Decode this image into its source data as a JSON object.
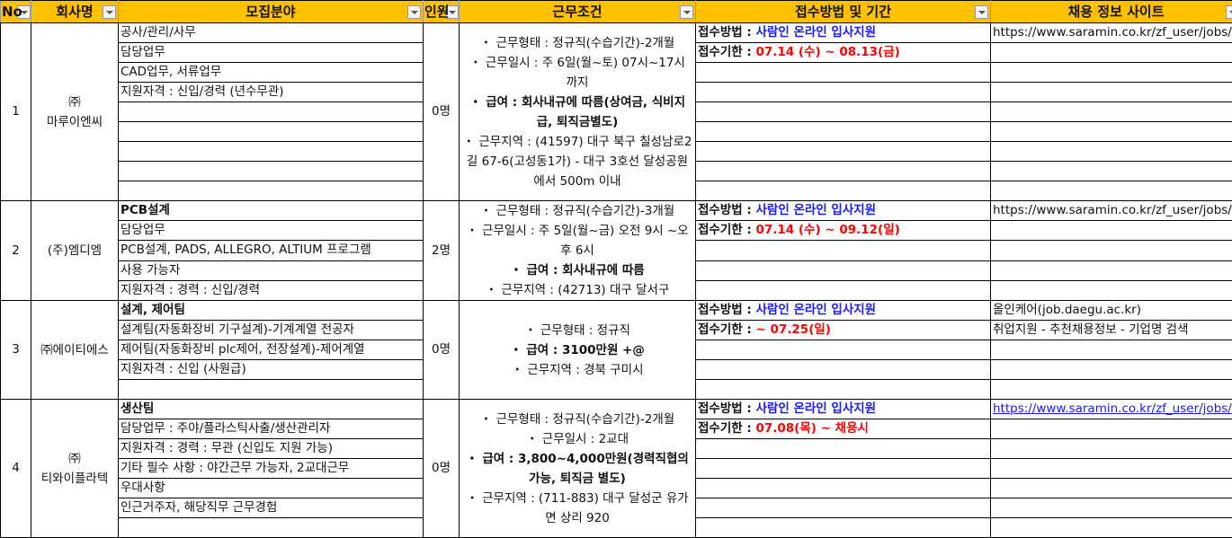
{
  "header": [
    "No",
    "회사명",
    "모집분야",
    "인원",
    "근무조건",
    "접수방법 및 기간",
    "채용 정보 사이트"
  ],
  "colors": {
    "header_bg": "#FFC000",
    "method": "#1a1aff",
    "deadline": "#ff0000"
  },
  "rows": [
    {
      "no": "1",
      "company": "㈜\n마루이엔씨",
      "count": "0명",
      "fields": [
        {
          "t": "공사/관리/사무"
        },
        {
          "t": "담당업무"
        },
        {
          "t": "CAD업무, 서류업무"
        },
        {
          "t": "지원자격 : 신입/경력 (년수무관)"
        },
        {
          "t": ""
        },
        {
          "t": ""
        },
        {
          "t": ""
        },
        {
          "t": ""
        },
        {
          "t": ""
        }
      ],
      "conditions": [
        {
          "t": "・ 근무형태 : 정규직(수습기간)-2개월",
          "b": false
        },
        {
          "t": "・ 근무일시 : 주 6일(월~토) 07시~17시 까지",
          "b": false
        },
        {
          "t": "・ 급여 : 회사내규에 따름(상여금, 식비지급, 퇴직금별도)",
          "b": true
        },
        {
          "t": "・ 근무지역 : (41597) 대구 북구 칠성남로2길 67-6(고성동1가) - 대구 3호선 달성공원 에서 500m 이내",
          "b": false
        }
      ],
      "method_label": "접수방법 : ",
      "method": "사람인 온라인 입사지원",
      "deadline_label": "접수기한 : ",
      "deadline": " 07.14 (수) ~ 08.13(금)",
      "sites": [
        {
          "t": "https://www.saramin.co.kr/zf_user/jobs/",
          "link": false
        },
        {
          "t": ""
        }
      ]
    },
    {
      "no": "2",
      "company": "(주)엠디엠",
      "count": "2명",
      "fields": [
        {
          "t": "PCB설계",
          "b": true
        },
        {
          "t": "담당업무"
        },
        {
          "t": "PCB설계, PADS, ALLEGRO, ALTIUM 프로그램"
        },
        {
          "t": "사용 가능자"
        },
        {
          "t": "지원자격 : 경력 : 신입/경력"
        }
      ],
      "conditions": [
        {
          "t": "・ 근무형태 : 정규직(수습기간)-3개월",
          "b": false
        },
        {
          "t": "・ 근무일시 : 주 5일(월~금) 오전 9시 ~오후 6시",
          "b": false
        },
        {
          "t": "・ 급여 : 회사내규에 따름",
          "b": true
        },
        {
          "t": "・ 근무지역 : (42713) 대구 달서구",
          "b": false
        }
      ],
      "method_label": "접수방법 : ",
      "method": "사람인 온라인 입사지원",
      "deadline_label": "접수기한 : ",
      "deadline": " 07.14 (수) ~ 09.12(일)",
      "sites": [
        {
          "t": "https://www.saramin.co.kr/zf_user/jobs/",
          "link": false
        },
        {
          "t": ""
        }
      ]
    },
    {
      "no": "3",
      "company": "㈜에이티에스",
      "count": "0명",
      "fields": [
        {
          "t": "설계, 제어팀",
          "b": true
        },
        {
          "t": "설계팀(자동화장비 기구설계)-기계계열 전공자"
        },
        {
          "t": "제어팀(자동화장비 plc제어, 전장설계)-제어계열"
        },
        {
          "t": "지원자격 : 신입 (사원급)"
        },
        {
          "t": ""
        }
      ],
      "conditions": [
        {
          "t": "・ 근무형태 : 정규직",
          "b": false
        },
        {
          "t": "・ 급여 : 3100만원 +@",
          "b": true
        },
        {
          "t": "・ 근무지역 : 경북 구미시",
          "b": false
        }
      ],
      "method_label": "접수방법 : ",
      "method": "사람인 온라인 입사지원",
      "deadline_label": "접수기한 : ",
      "deadline": "~ 07.25(일)",
      "sites": [
        {
          "t": "올인케어(job.daegu.ac.kr)",
          "link": false
        },
        {
          "t": "취업지원 - 추천채용정보 - 기업명 검색",
          "link": false
        }
      ]
    },
    {
      "no": "4",
      "company": "㈜\n티와이플라텍",
      "count": "0명",
      "fields": [
        {
          "t": "생산팀",
          "b": true
        },
        {
          "t": "담당업무 : 주야/플라스틱사출/생산관리자"
        },
        {
          "t": "지원자격 : 경력 : 무관 (신입도 지원 가능)"
        },
        {
          "t": "기타 필수 사항 : 야간근무 가능자, 2교대근무"
        },
        {
          "t": "우대사항"
        },
        {
          "t": "인근거주자, 해당직무 근무경험"
        },
        {
          "t": ""
        }
      ],
      "conditions": [
        {
          "t": "・ 근무형태 : 정규직(수습기간)-2개월",
          "b": false
        },
        {
          "t": "・ 근무일시 : 2교대",
          "b": false
        },
        {
          "t": "・ 급여 : 3,800~4,000만원(경력직협의가능, 퇴직금 별도)",
          "b": true
        },
        {
          "t": "・ 근무지역 : (711-883) 대구 달성군 유가면 상리 920",
          "b": false
        }
      ],
      "method_label": "접수방법 : ",
      "method": "사람인 온라인 입사지원",
      "deadline_label": "접수기한 : ",
      "deadline": "07.08(목) ~ 채용시",
      "sites": [
        {
          "t": "https://www.saramin.co.kr/zf_user/jobs/",
          "link": true
        },
        {
          "t": ""
        }
      ]
    }
  ]
}
